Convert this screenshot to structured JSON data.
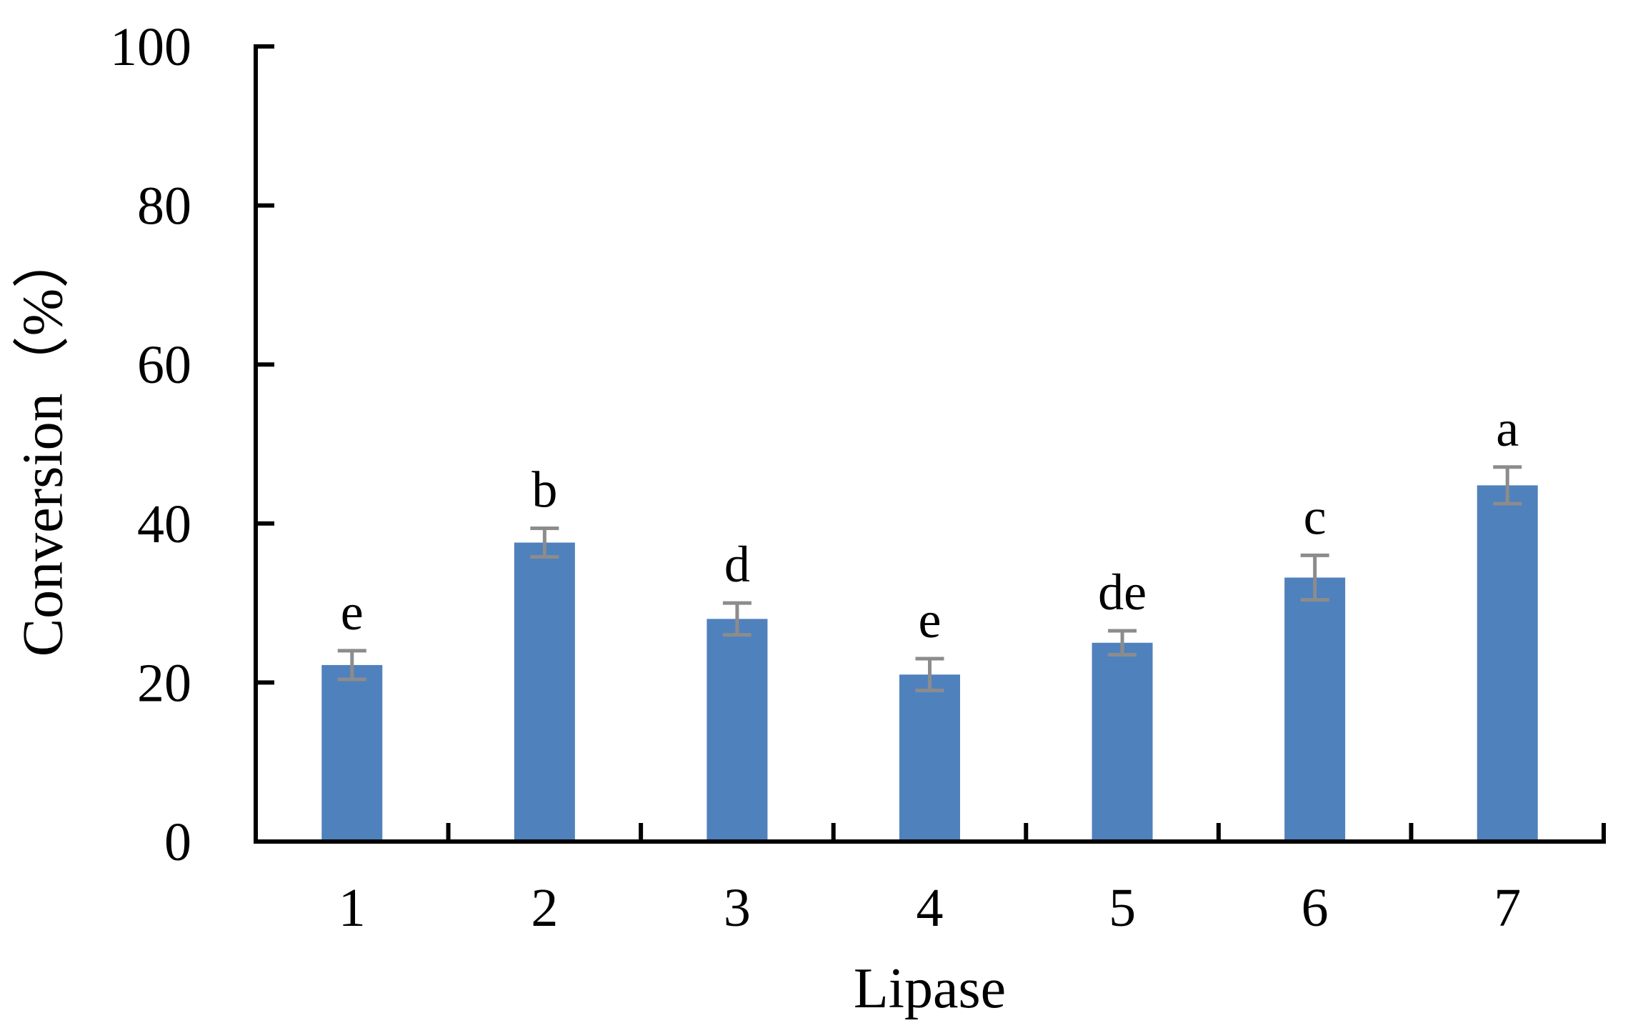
{
  "chart_data": {
    "type": "bar",
    "xlabel": "Lipase",
    "ylabel": "Conversion（%）",
    "ylim": [
      0,
      100
    ],
    "yticks": [
      0,
      20,
      40,
      60,
      80,
      100
    ],
    "categories": [
      "1",
      "2",
      "3",
      "4",
      "5",
      "6",
      "7"
    ],
    "values": [
      22.2,
      37.6,
      28.0,
      21.0,
      25.0,
      33.2,
      44.8
    ],
    "errors": [
      1.8,
      1.8,
      2.0,
      2.0,
      1.5,
      2.8,
      2.3
    ],
    "significance_labels": [
      "e",
      "b",
      "d",
      "e",
      "de",
      "c",
      "a"
    ],
    "grid": false,
    "legend": "none",
    "colors": {
      "bar": "#4F81BD",
      "error_bar": "#8C8C8C",
      "axis": "#000000"
    }
  }
}
